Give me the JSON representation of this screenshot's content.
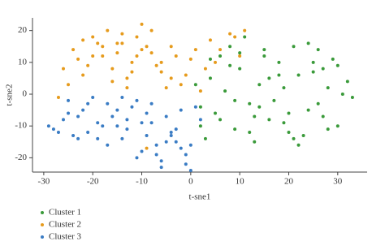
{
  "chart_data": {
    "type": "scatter",
    "xlabel": "t-sne1",
    "ylabel": "t-sne2",
    "xlim": [
      -32.3,
      36
    ],
    "ylim": [
      -24.5,
      24
    ],
    "xticks": [
      -30,
      -20,
      -10,
      0,
      10,
      20,
      30
    ],
    "yticks": [
      -20,
      -10,
      0,
      10,
      20
    ],
    "legend": "bottom-left",
    "series": [
      {
        "name": "Cluster 1",
        "color": "#3a9a3a",
        "x": [
          2,
          4,
          6,
          8,
          10,
          12,
          14,
          16,
          18,
          20,
          22,
          24,
          26,
          28,
          30,
          32,
          3,
          5,
          7,
          9,
          11,
          13,
          15,
          17,
          19,
          21,
          23,
          25,
          27,
          29,
          31,
          33,
          1,
          6,
          10,
          14,
          18,
          22,
          26,
          30,
          2,
          8,
          12,
          16,
          20,
          24,
          28,
          4,
          9,
          15,
          21,
          27,
          13,
          19,
          25
        ],
        "values": [
          -10,
          5,
          12,
          15,
          8,
          -3,
          3,
          -8,
          10,
          -12,
          6,
          -5,
          14,
          2,
          9,
          4,
          -14,
          -6,
          1,
          -11,
          18,
          -15,
          12,
          -2,
          -9,
          15,
          -13,
          7,
          -7,
          11,
          0,
          -1,
          3,
          -8,
          13,
          -4,
          6,
          -16,
          -3,
          -10,
          -4,
          9,
          -12,
          5,
          -6,
          16,
          -11,
          11,
          -2,
          14,
          -14,
          8,
          -7,
          2,
          10
        ]
      },
      {
        "name": "Cluster 2",
        "color": "#e69b1d",
        "x": [
          -26,
          -24,
          -22,
          -20,
          -18,
          -16,
          -14,
          -12,
          -10,
          -8,
          -6,
          -4,
          -2,
          0,
          2,
          4,
          6,
          8,
          10,
          -25,
          -23,
          -21,
          -19,
          -17,
          -15,
          -13,
          -11,
          -9,
          -7,
          -5,
          -3,
          -1,
          1,
          3,
          9,
          11,
          -27,
          -20,
          -14,
          -10,
          -6,
          -12,
          -16,
          -18,
          -22,
          -8,
          -4,
          -15,
          -11,
          5,
          -13,
          -9
        ],
        "values": [
          8,
          14,
          6,
          18,
          12,
          4,
          16,
          10,
          22,
          13,
          7,
          15,
          3,
          11,
          1,
          17,
          14,
          19,
          12,
          3,
          11,
          9,
          16,
          20,
          13,
          5,
          18,
          15,
          9,
          2,
          12,
          6,
          14,
          8,
          18,
          20,
          -1,
          12,
          19,
          14,
          10,
          7,
          8,
          15,
          17,
          20,
          5,
          16,
          12,
          10,
          2,
          -17
        ]
      },
      {
        "name": "Cluster 3",
        "color": "#3a7cc4",
        "x": [
          -29,
          -27,
          -25,
          -23,
          -21,
          -19,
          -17,
          -15,
          -13,
          -11,
          -9,
          -7,
          -5,
          -3,
          -1,
          1,
          -28,
          -26,
          -24,
          -22,
          -20,
          -18,
          -16,
          -14,
          -12,
          -10,
          -8,
          -6,
          -4,
          -2,
          0,
          2,
          -25,
          -21,
          -17,
          -13,
          -9,
          -5,
          -1,
          -19,
          -15,
          -11,
          -7,
          -3,
          -23,
          -14,
          -8,
          -2,
          -6,
          -10,
          -4,
          0
        ],
        "values": [
          -10,
          -12,
          -6,
          -14,
          -3,
          -9,
          -16,
          -5,
          -11,
          -2,
          -13,
          -19,
          -7,
          -15,
          -22,
          -4,
          -11,
          -8,
          -13,
          -5,
          -1,
          -10,
          -7,
          -14,
          -4,
          -18,
          -9,
          -21,
          -12,
          -17,
          -24,
          -8,
          -2,
          -12,
          -3,
          -8,
          -6,
          -15,
          -19,
          -14,
          -10,
          -20,
          -16,
          -11,
          -7,
          -1,
          -3,
          -5,
          -23,
          -9,
          -13,
          -16
        ]
      }
    ]
  }
}
